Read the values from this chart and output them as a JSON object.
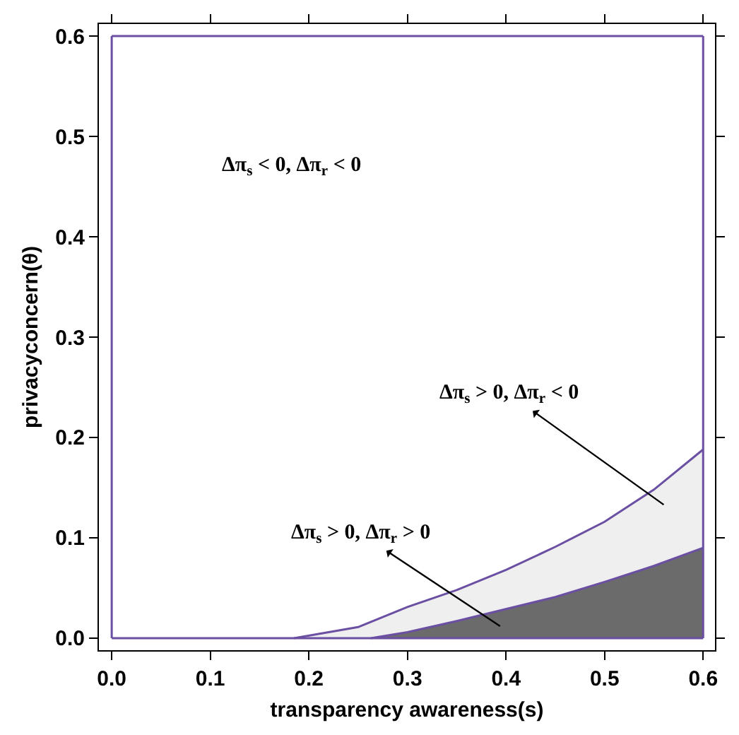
{
  "chart_data": {
    "type": "area",
    "xlabel": "transparency awareness(s)",
    "ylabel": "privacyconcern(θ)",
    "xlim": [
      -0.013,
      0.612
    ],
    "ylim": [
      -0.012,
      0.612
    ],
    "xticks": [
      {
        "value": 0,
        "label": "0.0"
      },
      0.1,
      0.2,
      0.3,
      0.4,
      0.5,
      0.6
    ],
    "yticks": [
      {
        "value": 0,
        "label": "0.0"
      },
      0.1,
      0.2,
      0.3,
      0.4,
      0.5,
      0.6
    ],
    "grid": false,
    "marker": "none",
    "series": [
      {
        "color": "#efefef",
        "x": [
          0.185,
          0.25,
          0.3,
          0.35,
          0.4,
          0.45,
          0.5,
          0.55,
          0.6
        ],
        "values": [
          0,
          0.011,
          0.031,
          0.048,
          0.068,
          0.091,
          0.116,
          0.148,
          0.188
        ]
      },
      {
        "color": "#6b6b6b",
        "x": [
          0.263,
          0.3,
          0.35,
          0.4,
          0.45,
          0.5,
          0.55,
          0.6
        ],
        "values": [
          0,
          0.006,
          0.017,
          0.029,
          0.041,
          0.056,
          0.072,
          0.09
        ]
      },
      {
        "type": "line",
        "color": "#6a4fa3",
        "x": [
          0,
          0.6
        ],
        "values": [
          0.6,
          0.6
        ]
      },
      {
        "type": "line",
        "color": "#6a4fa3",
        "x": [
          0,
          0.6
        ],
        "values": [
          0,
          0
        ]
      }
    ],
    "ref_lines": [
      {
        "axis": "x",
        "value": 0,
        "color": "#6a4fa3"
      },
      {
        "axis": "x",
        "value": 0.6,
        "color": "#6a4fa3"
      }
    ],
    "annotations": [
      "Δπ$_{s}$ > 0, Δπ$_{r}$ < 0",
      "Δπ$_{s}$ > 0, Δπ$_{r}$ > 0",
      "Δπ$_{s}$ < 0, Δπ$_{r}$ < 0"
    ]
  }
}
